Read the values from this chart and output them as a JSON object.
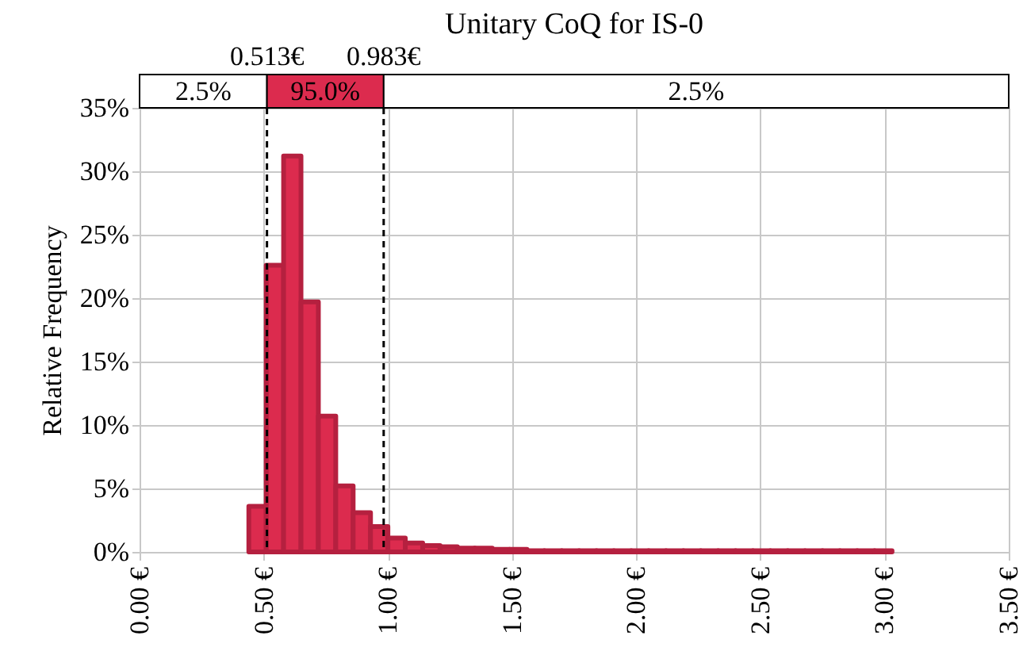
{
  "chart_data": {
    "type": "histogram",
    "title": "Unitary CoQ for IS-0",
    "ylabel": "Relative Frequency",
    "color": "#dc2b4e",
    "bins": [
      0.44,
      0.51,
      0.58,
      0.65,
      0.72,
      0.79,
      0.86,
      0.93,
      1.0,
      1.07,
      1.14,
      1.21,
      1.28,
      1.35,
      1.42,
      1.49,
      1.56,
      1.63,
      1.7,
      1.77,
      1.84,
      1.91,
      1.98,
      2.05,
      2.12,
      2.19,
      2.26,
      2.33,
      2.4,
      2.47,
      2.54,
      2.61,
      2.68,
      2.75,
      2.82,
      2.89,
      2.96,
      3.03
    ],
    "values": [
      3.6,
      22.6,
      31.2,
      19.7,
      10.7,
      5.2,
      3.1,
      2.0,
      1.1,
      0.7,
      0.5,
      0.4,
      0.3,
      0.3,
      0.2,
      0.2,
      0.1,
      0.1,
      0.1,
      0.1,
      0.1,
      0.1,
      0.1,
      0.1,
      0.1,
      0.1,
      0.1,
      0.1,
      0.1,
      0.1,
      0.1,
      0.1,
      0.1,
      0.1,
      0.1,
      0.1,
      0.1
    ],
    "xlim": [
      0,
      3.5
    ],
    "xticks": [
      {
        "value": 0,
        "label": "0.00 €"
      },
      {
        "value": 0.5,
        "label": "0.50 €"
      },
      {
        "value": 1,
        "label": "1.00 €"
      },
      {
        "value": 1.5,
        "label": "1.50 €"
      },
      {
        "value": 2,
        "label": "2.00 €"
      },
      {
        "value": 2.5,
        "label": "2.50 €"
      },
      {
        "value": 3,
        "label": "3.00 €"
      },
      {
        "value": 3.5,
        "label": "3.50 €"
      }
    ],
    "ylim": [
      0,
      35
    ],
    "yticks": [
      {
        "value": 0,
        "label": "0%"
      },
      {
        "value": 5,
        "label": "5%"
      },
      {
        "value": 10,
        "label": "10%"
      },
      {
        "value": 15,
        "label": "15%"
      },
      {
        "value": 20,
        "label": "20%"
      },
      {
        "value": 25,
        "label": "25%"
      },
      {
        "value": 30,
        "label": "30%"
      },
      {
        "value": 35,
        "label": "35%"
      }
    ],
    "grid": true,
    "ref_lines": [
      {
        "axis": "x",
        "value": 0.513,
        "label": "0.513€",
        "line_style": "dashed"
      },
      {
        "axis": "x",
        "value": 0.983,
        "label": "0.983€",
        "line_style": "dashed"
      }
    ],
    "annotations": [
      "2.5%",
      "95.0%",
      "2.5%"
    ]
  }
}
